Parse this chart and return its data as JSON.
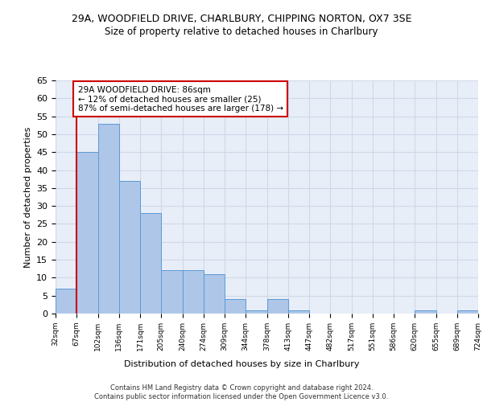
{
  "title": "29A, WOODFIELD DRIVE, CHARLBURY, CHIPPING NORTON, OX7 3SE",
  "subtitle": "Size of property relative to detached houses in Charlbury",
  "xlabel": "Distribution of detached houses by size in Charlbury",
  "ylabel": "Number of detached properties",
  "bar_values": [
    7,
    45,
    53,
    37,
    28,
    12,
    12,
    11,
    4,
    1,
    4,
    1,
    0,
    0,
    0,
    0,
    0,
    1,
    0,
    1
  ],
  "bin_labels": [
    "32sqm",
    "67sqm",
    "102sqm",
    "136sqm",
    "171sqm",
    "205sqm",
    "240sqm",
    "274sqm",
    "309sqm",
    "344sqm",
    "378sqm",
    "413sqm",
    "447sqm",
    "482sqm",
    "517sqm",
    "551sqm",
    "586sqm",
    "620sqm",
    "655sqm",
    "689sqm",
    "724sqm"
  ],
  "bar_color": "#aec6e8",
  "bar_edge_color": "#5b9bd5",
  "grid_color": "#d0d8e8",
  "background_color": "#e8eef8",
  "vline_color": "#cc0000",
  "annotation_text": "29A WOODFIELD DRIVE: 86sqm\n← 12% of detached houses are smaller (25)\n87% of semi-detached houses are larger (178) →",
  "annotation_box_color": "#ffffff",
  "annotation_box_edge": "#cc0000",
  "ylim": [
    0,
    65
  ],
  "yticks": [
    0,
    5,
    10,
    15,
    20,
    25,
    30,
    35,
    40,
    45,
    50,
    55,
    60,
    65
  ],
  "footer_line1": "Contains HM Land Registry data © Crown copyright and database right 2024.",
  "footer_line2": "Contains public sector information licensed under the Open Government Licence v3.0."
}
